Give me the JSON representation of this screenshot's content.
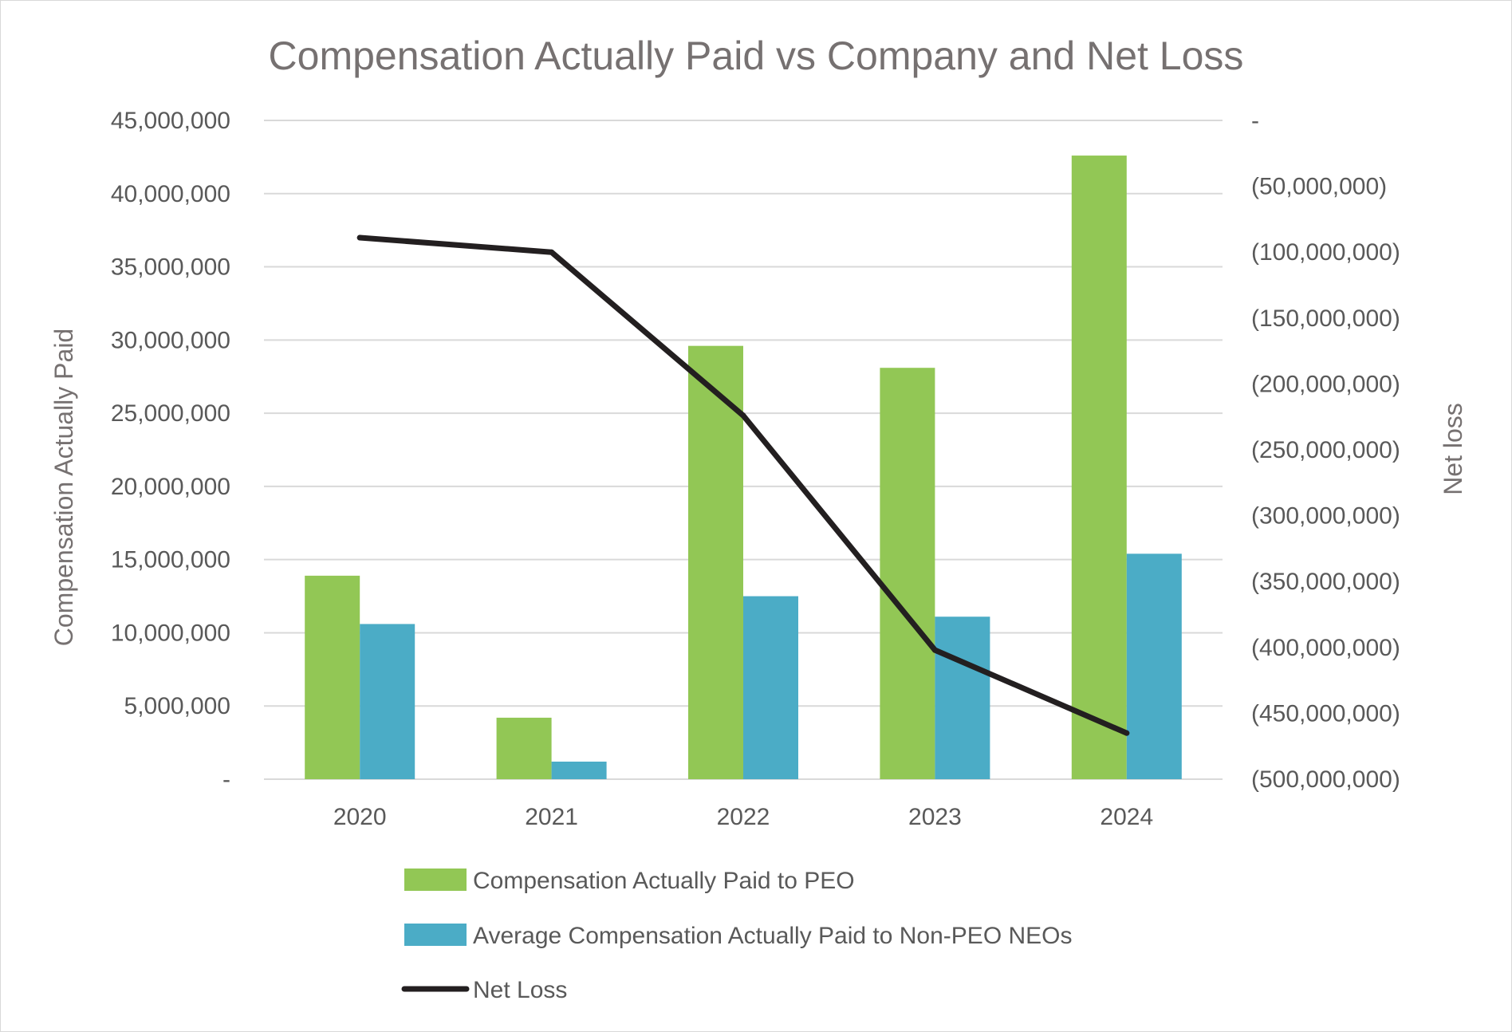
{
  "chart_data": {
    "type": "bar",
    "title": "Compensation Actually Paid vs Company and Net Loss",
    "categories": [
      "2020",
      "2021",
      "2022",
      "2023",
      "2024"
    ],
    "ylabel": "Compensation Actually Paid",
    "ylabel_right": "Net loss",
    "ylim": [
      0,
      45000000
    ],
    "ylim_right": [
      -500000000,
      0
    ],
    "yticks": [
      "-",
      "5,000,000",
      "10,000,000",
      "15,000,000",
      "20,000,000",
      "25,000,000",
      "30,000,000",
      "35,000,000",
      "40,000,000",
      "45,000,000"
    ],
    "yticks_right": [
      "(500,000,000)",
      "(450,000,000)",
      "(400,000,000)",
      "(350,000,000)",
      "(300,000,000)",
      "(250,000,000)",
      "(200,000,000)",
      "(150,000,000)",
      "(100,000,000)",
      "(50,000,000)",
      "-"
    ],
    "grid": true,
    "legend_position": "bottom",
    "series": [
      {
        "name": "Compensation Actually Paid to PEO",
        "type": "bar",
        "axis": "left",
        "color": "#92c755",
        "values": [
          13900000,
          4200000,
          29600000,
          28100000,
          42600000
        ]
      },
      {
        "name": "Average Compensation Actually Paid to Non-PEO NEOs",
        "type": "bar",
        "axis": "left",
        "color": "#4bacc6",
        "values": [
          10600000,
          1200000,
          12500000,
          11100000,
          15400000
        ]
      },
      {
        "name": "Net Loss",
        "type": "line",
        "axis": "right",
        "color": "#231f20",
        "values": [
          -89000000,
          -100000000,
          -224000000,
          -402000000,
          -465000000
        ]
      }
    ]
  }
}
